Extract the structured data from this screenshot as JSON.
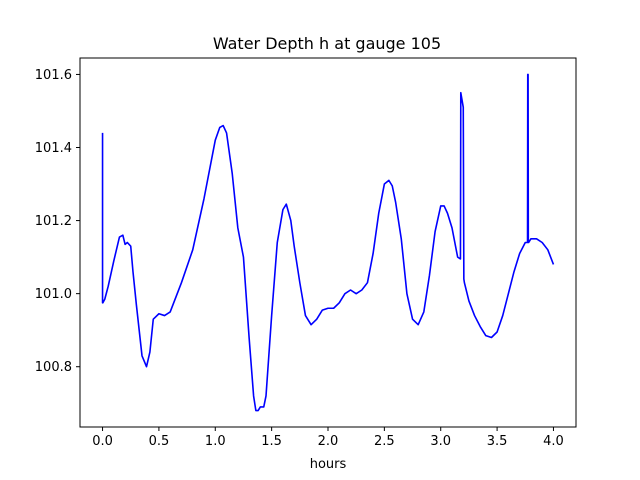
{
  "chart_data": {
    "type": "line",
    "title": "Water Depth h at gauge 105",
    "xlabel": "hours",
    "ylabel": "",
    "xlim": [
      -0.2,
      4.2
    ],
    "ylim": [
      100.635,
      101.645
    ],
    "xticks": [
      0.0,
      0.5,
      1.0,
      1.5,
      2.0,
      2.5,
      3.0,
      3.5,
      4.0
    ],
    "xtick_labels": [
      "0.0",
      "0.5",
      "1.0",
      "1.5",
      "2.0",
      "2.5",
      "3.0",
      "3.5",
      "4.0"
    ],
    "yticks": [
      100.8,
      101.0,
      101.2,
      101.4,
      101.6
    ],
    "ytick_labels": [
      "100.8",
      "101.0",
      "101.2",
      "101.4",
      "101.6"
    ],
    "grid": false,
    "legend": "none",
    "series": [
      {
        "color": "#0000ff",
        "x": [
          0.0,
          0.0,
          0.003,
          0.02,
          0.05,
          0.1,
          0.15,
          0.18,
          0.2,
          0.22,
          0.25,
          0.27,
          0.3,
          0.35,
          0.39,
          0.42,
          0.45,
          0.5,
          0.55,
          0.6,
          0.65,
          0.7,
          0.8,
          0.9,
          1.0,
          1.04,
          1.07,
          1.1,
          1.15,
          1.2,
          1.25,
          1.3,
          1.34,
          1.36,
          1.38,
          1.4,
          1.43,
          1.45,
          1.5,
          1.55,
          1.6,
          1.63,
          1.67,
          1.7,
          1.75,
          1.8,
          1.85,
          1.9,
          1.95,
          2.0,
          2.05,
          2.1,
          2.15,
          2.2,
          2.25,
          2.3,
          2.35,
          2.4,
          2.45,
          2.5,
          2.54,
          2.57,
          2.6,
          2.65,
          2.7,
          2.75,
          2.8,
          2.85,
          2.9,
          2.95,
          3.0,
          3.03,
          3.06,
          3.1,
          3.15,
          3.175,
          3.178,
          3.2,
          3.205,
          3.21,
          3.25,
          3.3,
          3.35,
          3.4,
          3.45,
          3.5,
          3.55,
          3.6,
          3.65,
          3.7,
          3.75,
          3.77,
          3.772,
          3.775,
          3.777,
          3.78,
          3.8,
          3.85,
          3.9,
          3.95,
          4.0
        ],
        "y": [
          101.44,
          100.975,
          100.975,
          100.985,
          101.02,
          101.09,
          101.155,
          101.16,
          101.135,
          101.14,
          101.13,
          101.06,
          100.97,
          100.83,
          100.8,
          100.84,
          100.93,
          100.945,
          100.94,
          100.95,
          100.99,
          101.03,
          101.12,
          101.26,
          101.42,
          101.455,
          101.46,
          101.44,
          101.33,
          101.18,
          101.1,
          100.88,
          100.72,
          100.68,
          100.68,
          100.69,
          100.69,
          100.72,
          100.94,
          101.14,
          101.23,
          101.245,
          101.2,
          101.13,
          101.03,
          100.94,
          100.915,
          100.93,
          100.955,
          100.96,
          100.96,
          100.975,
          101.0,
          101.01,
          101.0,
          101.01,
          101.03,
          101.11,
          101.22,
          101.3,
          101.31,
          101.295,
          101.25,
          101.15,
          101.0,
          100.93,
          100.915,
          100.95,
          101.05,
          101.17,
          101.24,
          101.24,
          101.22,
          101.18,
          101.1,
          101.095,
          101.55,
          101.51,
          101.04,
          101.03,
          100.98,
          100.94,
          100.91,
          100.885,
          100.88,
          100.895,
          100.94,
          101.0,
          101.06,
          101.11,
          101.14,
          101.14,
          101.6,
          101.6,
          101.14,
          101.14,
          101.15,
          101.15,
          101.14,
          101.12,
          101.08
        ]
      }
    ]
  }
}
